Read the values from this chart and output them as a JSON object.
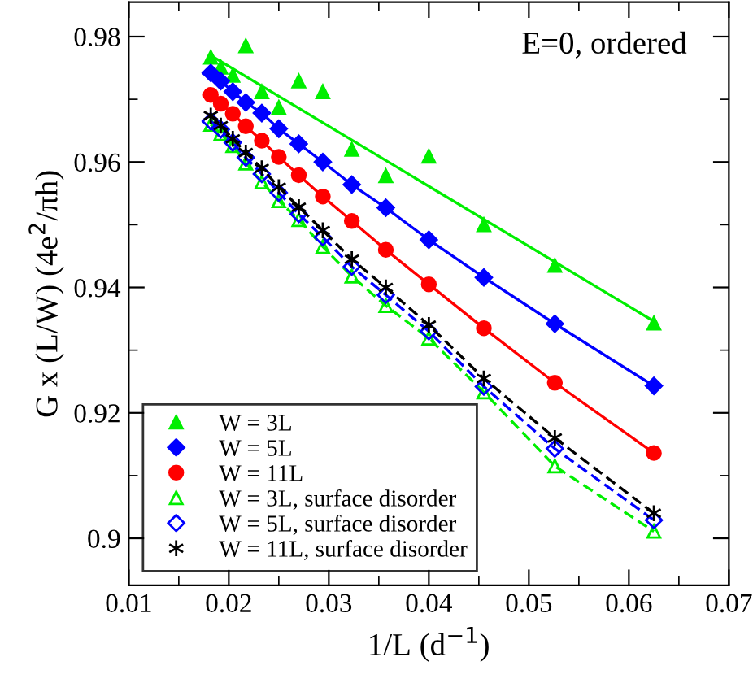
{
  "chart_data": {
    "type": "line",
    "xlabel": "1/L (d$^{−1}$)",
    "ylabel": "G x (L/W) (4e$^{2}$/πh)",
    "annotations": [
      "E=0, ordered"
    ],
    "xlim": [
      0.01,
      0.07
    ],
    "xticks": [
      0.01,
      0.02,
      0.03,
      0.04,
      0.05,
      0.06,
      0.07
    ],
    "ylim": [
      0.8925,
      0.9855
    ],
    "yticks": [
      {
        "value": 0.9,
        "label": "0.9"
      },
      0.92,
      0.94,
      0.96,
      0.98
    ],
    "grid": false,
    "legend": "bottom left",
    "x": [
      0.0182,
      0.0192,
      0.0204,
      0.0217,
      0.0233,
      0.025,
      0.027,
      0.0294,
      0.0323,
      0.0357,
      0.04,
      0.0455,
      0.0526,
      0.0625
    ],
    "series": [
      {
        "name": "W = 3L",
        "type": "scatter",
        "color": "#00ee00",
        "marker": "triangle",
        "values": [
          0.9767,
          0.9751,
          0.9738,
          0.9785,
          0.9712,
          0.9687,
          0.9729,
          0.9712,
          0.962,
          0.9578,
          0.9609,
          0.95,
          0.9435,
          0.9343
        ]
      },
      {
        "name": "W = 5L",
        "color": "#0000ff",
        "marker": "diamond",
        "line_style": "solid",
        "values": [
          0.9742,
          0.9729,
          0.9712,
          0.9695,
          0.9678,
          0.9653,
          0.9629,
          0.96,
          0.9564,
          0.9527,
          0.9476,
          0.9416,
          0.9342,
          0.9243
        ]
      },
      {
        "name": "W = 11L",
        "color": "#ff0000",
        "marker": "circle",
        "line_style": "solid",
        "values": [
          0.9707,
          0.9693,
          0.9677,
          0.9657,
          0.9634,
          0.9608,
          0.9579,
          0.9545,
          0.9506,
          0.946,
          0.9405,
          0.9335,
          0.9248,
          0.9136
        ]
      },
      {
        "name": "W = 3L, surface disorder",
        "color": "#00ee00",
        "marker": "triangle",
        "line_style": "dashed",
        "values": [
          0.966,
          0.9645,
          0.9626,
          0.9598,
          0.9568,
          0.9538,
          0.9508,
          0.9465,
          0.9418,
          0.9371,
          0.9319,
          0.9233,
          0.9115,
          0.9011
        ]
      },
      {
        "name": "W = 5L, surface disorder",
        "color": "#0000ff",
        "marker": "diamond",
        "line_style": "dashed",
        "values": [
          0.9665,
          0.9652,
          0.9631,
          0.9607,
          0.9581,
          0.9551,
          0.9517,
          0.948,
          0.9433,
          0.9388,
          0.933,
          0.9242,
          0.9143,
          0.9029
        ]
      },
      {
        "name": "W = 11L, surface disorder",
        "color": "#000000",
        "marker": "cross",
        "line_style": "dashed",
        "values": [
          0.9674,
          0.9658,
          0.9637,
          0.9615,
          0.959,
          0.956,
          0.9528,
          0.9491,
          0.9445,
          0.94,
          0.934,
          0.9255,
          0.916,
          0.904
        ]
      },
      {
        "color": "#00ee00",
        "marker": "none",
        "line_style": "solid",
        "x": [
          0.0182,
          0.0625
        ],
        "values": [
          0.977,
          0.9346
        ]
      }
    ]
  }
}
